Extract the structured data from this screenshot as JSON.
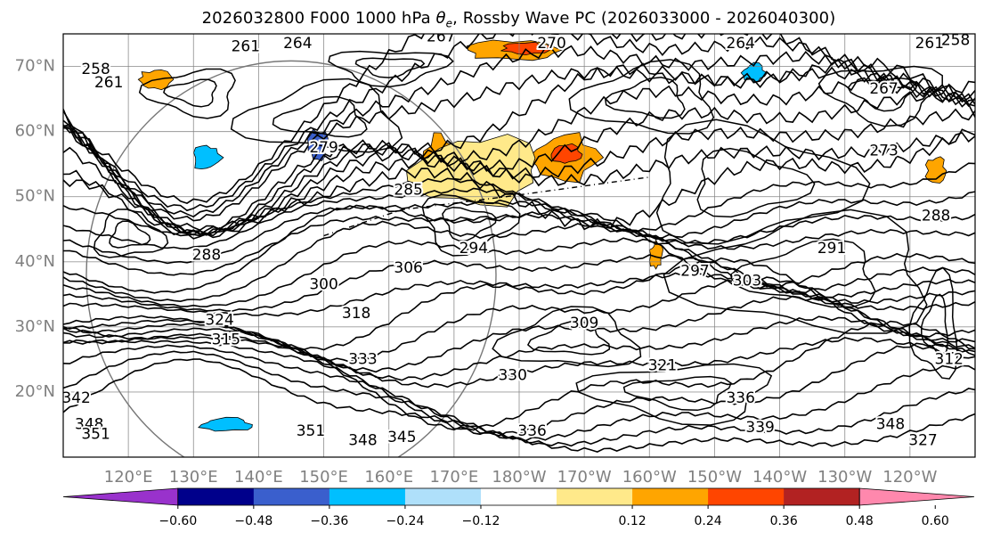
{
  "title": {
    "main": "2026032800 F000 1000 hPa ",
    "symbol": "θ",
    "symbol_sub": "e",
    "tail": ", Rossby Wave PC (2026033000 - 2026040300)"
  },
  "chart_data": {
    "type": "contour-map",
    "field_contour": "1000 hPa equivalent potential temperature (K)",
    "field_fill": "Rossby Wave PC",
    "valid_time": "2026032800",
    "forecast_hour": "F000",
    "pc_window": "2026033000 - 2026040300",
    "lat_range": [
      10,
      75
    ],
    "lon_range": [
      110,
      250
    ],
    "lat_ticks": [
      "70°N",
      "60°N",
      "50°N",
      "40°N",
      "30°N",
      "20°N"
    ],
    "lon_ticks": [
      "120°E",
      "130°E",
      "140°E",
      "150°E",
      "160°E",
      "170°E",
      "180°W",
      "170°W",
      "160°W",
      "150°W",
      "140°W",
      "130°W",
      "120°W"
    ],
    "contour_interval": 3,
    "contour_labels": [
      "264",
      "267",
      "270",
      "264",
      "261",
      "258",
      "261",
      "261",
      "258",
      "267",
      "273",
      "279",
      "285",
      "294",
      "306",
      "300",
      "297",
      "303",
      "291",
      "288",
      "288",
      "309",
      "315",
      "318",
      "333",
      "330",
      "321",
      "342",
      "348",
      "351",
      "351",
      "348",
      "345",
      "336",
      "339",
      "348",
      "327",
      "312",
      "324",
      "336"
    ],
    "colorbar": {
      "ticks": [
        "−0.60",
        "−0.48",
        "−0.36",
        "−0.24",
        "−0.12",
        "0.12",
        "0.24",
        "0.36",
        "0.48",
        "0.60"
      ],
      "bins": [
        {
          "range": "< −0.60",
          "color": "#9932cc"
        },
        {
          "range": "−0.60 to −0.48",
          "color": "#00008b"
        },
        {
          "range": "−0.48 to −0.36",
          "color": "#3a5fcd"
        },
        {
          "range": "−0.36 to −0.24",
          "color": "#00bfff"
        },
        {
          "range": "−0.24 to −0.12",
          "color": "#afe0fa"
        },
        {
          "range": "−0.12 to 0.12",
          "color": "#ffffff"
        },
        {
          "range": "0.12 to 0.24",
          "color": "#ffe98a"
        },
        {
          "range": "0.24 to 0.36",
          "color": "#ffa500"
        },
        {
          "range": "0.36 to 0.48",
          "color": "#ff4500"
        },
        {
          "range": "0.48 to 0.60",
          "color": "#b22222"
        },
        {
          "range": "> 0.60",
          "color": "#ff88ad"
        }
      ]
    },
    "fill_regions": [
      {
        "color": "#ffa500",
        "lat": 55,
        "lon": 168,
        "rx": 2.5,
        "ry": 4.5
      },
      {
        "color": "#ffa500",
        "lat": 55.5,
        "lon": 175,
        "rx": 5.5,
        "ry": 3.0
      },
      {
        "color": "#ffa500",
        "lat": 56,
        "lon": 187,
        "rx": 5.0,
        "ry": 3.5
      },
      {
        "color": "#ff4500",
        "lat": 56.5,
        "lon": 187,
        "rx": 2.5,
        "ry": 1.5
      },
      {
        "color": "#ffa500",
        "lat": 72.5,
        "lon": 179,
        "rx": 7.0,
        "ry": 1.5
      },
      {
        "color": "#ff4500",
        "lat": 72.8,
        "lon": 181,
        "rx": 3.5,
        "ry": 0.9
      },
      {
        "color": "#ffe98a",
        "lat": 54,
        "lon": 174,
        "rx": 10.0,
        "ry": 5.5
      },
      {
        "color": "#00bfff",
        "lat": 69,
        "lon": 216,
        "rx": 1.8,
        "ry": 1.4
      },
      {
        "color": "#3a5fcd",
        "lat": 58,
        "lon": 149,
        "rx": 1.5,
        "ry": 2.3
      },
      {
        "color": "#00bfff",
        "lat": 56,
        "lon": 132,
        "rx": 2.2,
        "ry": 2.0
      },
      {
        "color": "#00bfff",
        "lat": 15,
        "lon": 135,
        "rx": 4.0,
        "ry": 1.0
      },
      {
        "color": "#ffa500",
        "lat": 54,
        "lon": 244,
        "rx": 1.5,
        "ry": 2.0
      },
      {
        "color": "#ffa500",
        "lat": 41,
        "lon": 201,
        "rx": 1.0,
        "ry": 2.0
      },
      {
        "color": "#ffa500",
        "lat": 68,
        "lon": 124,
        "rx": 2.5,
        "ry": 1.5
      }
    ]
  },
  "colors": {
    "contour": "#000000",
    "grid": "#808080",
    "axis_text": "#808080"
  }
}
